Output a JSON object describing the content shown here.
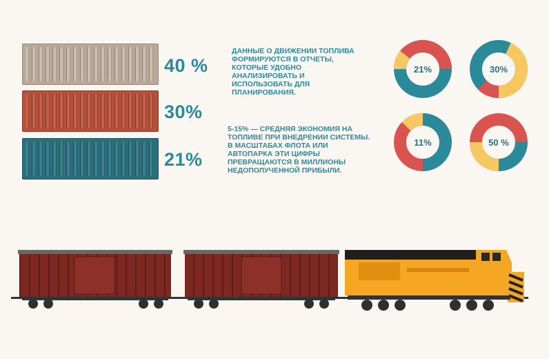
{
  "bars": [
    {
      "label": "40 %",
      "color": "#b8a899"
    },
    {
      "label": "30%",
      "color": "#b5513a"
    },
    {
      "label": "21%",
      "color": "#2b6f7d"
    }
  ],
  "text_blocks": {
    "fuel_data": "Данные о движении топлива формируются в отчеты, которые удобно анализировать и использовать для планирования.",
    "savings": "5-15% — средняя экономия на топливе при внедрении системы. В масштабах флота или автопарка эти цифры превращаются в миллионы недополученной прибыли."
  },
  "donuts": [
    {
      "label": "21%",
      "value": 21
    },
    {
      "label": "30%",
      "value": 30
    },
    {
      "label": "11%",
      "value": 11
    },
    {
      "label": "50 %",
      "value": 50
    }
  ],
  "colors": {
    "teal": "#2b8a9a",
    "red": "#d9534f",
    "yellow": "#f6c85f",
    "wagon": "#8b2a24",
    "locomotive": "#f5a623"
  }
}
